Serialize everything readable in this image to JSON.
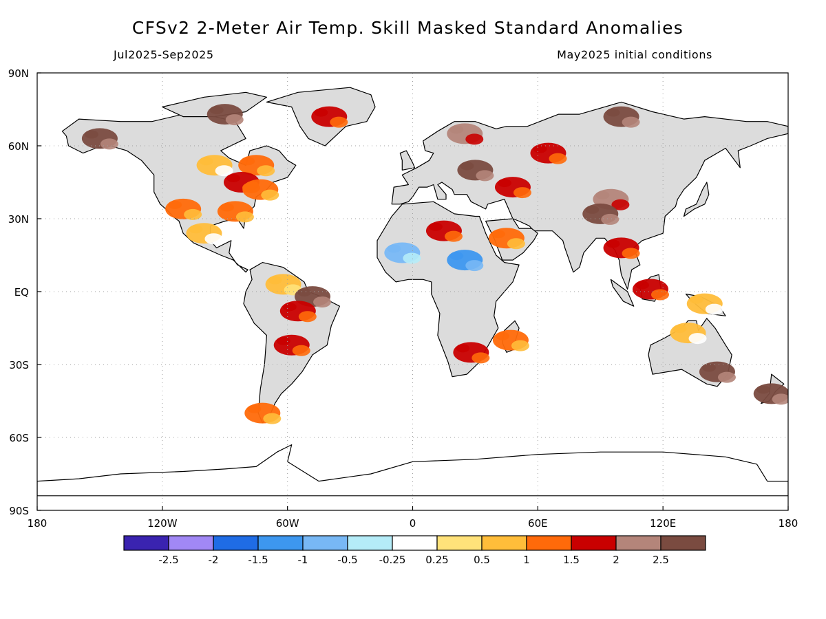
{
  "title": "CFSv2 2-Meter Air Temp. Skill Masked Standard Anomalies",
  "subtitle_left": "Jul2025-Sep2025",
  "subtitle_right": "May2025 initial conditions",
  "colors": {
    "land_masked": "#dcdcdc",
    "ocean": "#ffffff",
    "coastline": "#000000",
    "grid": "#a0a0a0"
  },
  "chart_data": {
    "type": "heatmap",
    "projection": "equirectangular",
    "xlim": [
      -180,
      180
    ],
    "ylim": [
      -90,
      90
    ],
    "grid": true,
    "x_ticks": [
      {
        "value": -180,
        "label": "180"
      },
      {
        "value": -120,
        "label": "120W"
      },
      {
        "value": -60,
        "label": "60W"
      },
      {
        "value": 0,
        "label": "0"
      },
      {
        "value": 60,
        "label": "60E"
      },
      {
        "value": 120,
        "label": "120E"
      },
      {
        "value": 180,
        "label": "180"
      }
    ],
    "y_ticks": [
      {
        "value": 90,
        "label": "90N"
      },
      {
        "value": 60,
        "label": "60N"
      },
      {
        "value": 30,
        "label": "30N"
      },
      {
        "value": 0,
        "label": "EQ"
      },
      {
        "value": -30,
        "label": "30S"
      },
      {
        "value": -60,
        "label": "60S"
      },
      {
        "value": -90,
        "label": "90S"
      }
    ],
    "colorbar": {
      "colors": [
        "#3a23b0",
        "#a188f5",
        "#1f6ce5",
        "#3d97ef",
        "#78b8f5",
        "#b5ecf8",
        "#ffffff",
        "#ffe27a",
        "#ffbd3a",
        "#ff6a0a",
        "#c90000",
        "#b4857a",
        "#7a4b40"
      ],
      "labels": [
        "-2.5",
        "-2",
        "-1.5",
        "-1",
        "-0.5",
        "-0.25",
        "0.25",
        "0.5",
        "1",
        "1.5",
        "2",
        "2.5"
      ]
    },
    "anomaly_regions": [
      {
        "name": "Greenland",
        "lon": -40,
        "lat": 72,
        "value": 1.6
      },
      {
        "name": "Canadian Arctic",
        "lon": -90,
        "lat": 73,
        "value": 2.6
      },
      {
        "name": "Eastern Canada",
        "lon": -75,
        "lat": 52,
        "value": 1.2
      },
      {
        "name": "Central Canada",
        "lon": -95,
        "lat": 52,
        "value": 0.6
      },
      {
        "name": "Great Lakes",
        "lon": -82,
        "lat": 45,
        "value": 1.7
      },
      {
        "name": "US Northeast",
        "lon": -73,
        "lat": 42,
        "value": 1.3
      },
      {
        "name": "US Southeast",
        "lon": -85,
        "lat": 33,
        "value": 1.2
      },
      {
        "name": "US Southwest",
        "lon": -110,
        "lat": 34,
        "value": 1.3
      },
      {
        "name": "Alaska",
        "lon": -150,
        "lat": 63,
        "value": 2.6
      },
      {
        "name": "Mexico",
        "lon": -100,
        "lat": 24,
        "value": 0.7
      },
      {
        "name": "Northern South America",
        "lon": -62,
        "lat": 3,
        "value": 0.8
      },
      {
        "name": "Eastern Amazon",
        "lon": -48,
        "lat": -2,
        "value": 2.6
      },
      {
        "name": "Central Brazil",
        "lon": -55,
        "lat": -8,
        "value": 1.7
      },
      {
        "name": "Paraguay",
        "lon": -58,
        "lat": -22,
        "value": 1.7
      },
      {
        "name": "Patagonia",
        "lon": -72,
        "lat": -50,
        "value": 1.2
      },
      {
        "name": "Sahara",
        "lon": 15,
        "lat": 25,
        "value": 1.8
      },
      {
        "name": "Sahel West",
        "lon": -5,
        "lat": 16,
        "value": -0.9
      },
      {
        "name": "Sahel East",
        "lon": 25,
        "lat": 13,
        "value": -1.2
      },
      {
        "name": "Arabian Peninsula",
        "lon": 45,
        "lat": 22,
        "value": 1.3
      },
      {
        "name": "Madagascar",
        "lon": 47,
        "lat": -20,
        "value": 1.2
      },
      {
        "name": "Southern Africa",
        "lon": 28,
        "lat": -25,
        "value": 1.7
      },
      {
        "name": "Eastern Europe",
        "lon": 30,
        "lat": 50,
        "value": 2.6
      },
      {
        "name": "Scandinavia",
        "lon": 25,
        "lat": 65,
        "value": 2.0
      },
      {
        "name": "Caucasus / Caspian",
        "lon": 48,
        "lat": 43,
        "value": 1.7
      },
      {
        "name": "Western Siberia",
        "lon": 65,
        "lat": 57,
        "value": 1.7
      },
      {
        "name": "Taymyr",
        "lon": 100,
        "lat": 72,
        "value": 2.6
      },
      {
        "name": "Central Asia",
        "lon": 95,
        "lat": 38,
        "value": 2.0
      },
      {
        "name": "Tibet",
        "lon": 90,
        "lat": 32,
        "value": 2.5
      },
      {
        "name": "Southeast Asia",
        "lon": 100,
        "lat": 18,
        "value": 1.6
      },
      {
        "name": "Borneo",
        "lon": 114,
        "lat": 1,
        "value": 1.7
      },
      {
        "name": "New Guinea",
        "lon": 140,
        "lat": -5,
        "value": 0.7
      },
      {
        "name": "Northern Australia",
        "lon": 132,
        "lat": -17,
        "value": 0.7
      },
      {
        "name": "Southeastern Australia",
        "lon": 146,
        "lat": -33,
        "value": 2.6
      },
      {
        "name": "New Zealand",
        "lon": 172,
        "lat": -42,
        "value": 2.6
      }
    ]
  }
}
